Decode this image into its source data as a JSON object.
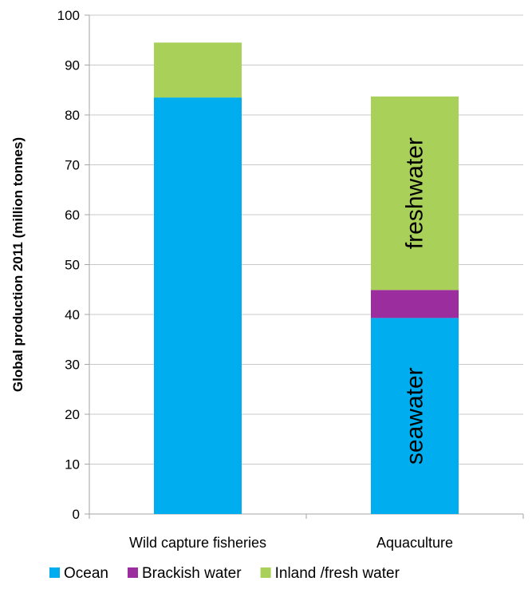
{
  "chart_data": {
    "type": "bar",
    "stacked": true,
    "categories": [
      "Wild capture fisheries",
      "Aquaculture"
    ],
    "series": [
      {
        "name": "Ocean",
        "values": [
          83.5,
          39.3
        ],
        "color": "#00AEEF"
      },
      {
        "name": "Brackish water",
        "values": [
          0,
          5.6
        ],
        "color": "#9B2D9F"
      },
      {
        "name": "Inland /fresh water",
        "values": [
          11.0,
          38.8
        ],
        "color": "#A9D15A"
      }
    ],
    "ylabel": "Global production 2011 (million tonnes)",
    "ylim": [
      0,
      100
    ],
    "yticks": [
      0,
      10,
      20,
      30,
      40,
      50,
      60,
      70,
      80,
      90,
      100
    ],
    "grid": true,
    "legend_position": "bottom",
    "annotations": [
      {
        "text": "freshwater",
        "category": "Aquaculture",
        "series": "Inland /fresh water"
      },
      {
        "text": "seawater",
        "category": "Aquaculture",
        "series": "Ocean"
      }
    ]
  }
}
